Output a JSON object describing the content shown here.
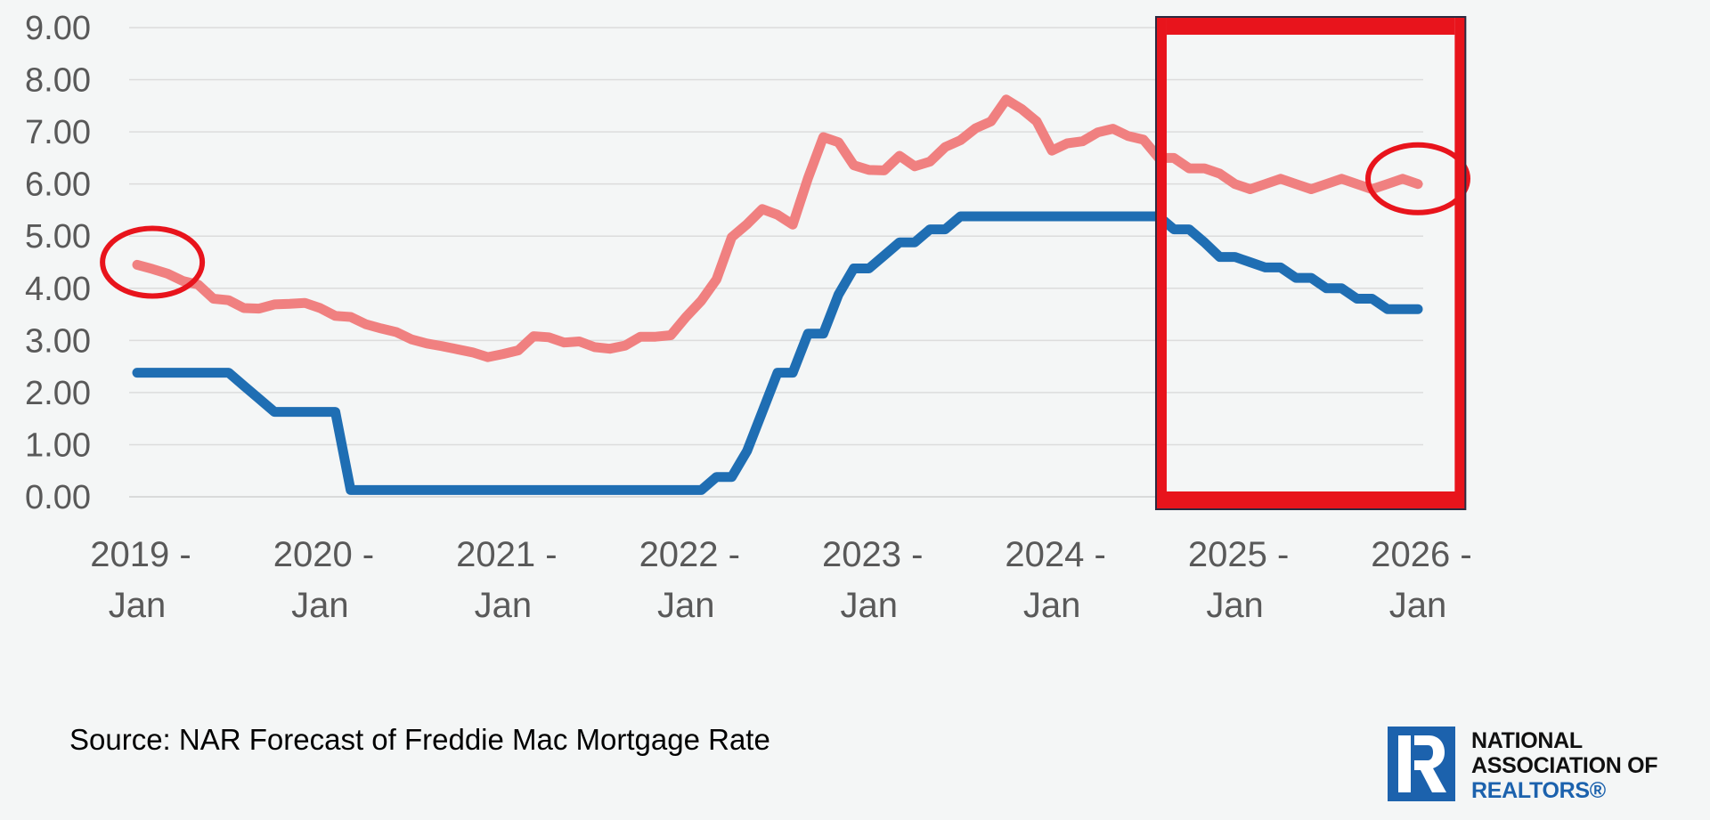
{
  "chart_data": {
    "type": "line",
    "title": "",
    "xlabel": "",
    "ylabel": "",
    "ylim": [
      0,
      9
    ],
    "y_ticks": [
      "0.00",
      "1.00",
      "2.00",
      "3.00",
      "4.00",
      "5.00",
      "6.00",
      "7.00",
      "8.00",
      "9.00"
    ],
    "x_ticks": [
      {
        "year": "2019 -",
        "month": "Jan"
      },
      {
        "year": "2020 -",
        "month": "Jan"
      },
      {
        "year": "2021 -",
        "month": "Jan"
      },
      {
        "year": "2022 -",
        "month": "Jan"
      },
      {
        "year": "2023 -",
        "month": "Jan"
      },
      {
        "year": "2024 -",
        "month": "Jan"
      },
      {
        "year": "2025 -",
        "month": "Jan"
      },
      {
        "year": "2026 -",
        "month": "Jan"
      }
    ],
    "x_start": "2019-01",
    "x_end": "2026-01",
    "grid": true,
    "series": [
      {
        "color": "#f08080",
        "points": [
          [
            "2019-01",
            4.45
          ],
          [
            "2019-02",
            4.37
          ],
          [
            "2019-03",
            4.28
          ],
          [
            "2019-04",
            4.14
          ],
          [
            "2019-05",
            4.07
          ],
          [
            "2019-06",
            3.8
          ],
          [
            "2019-07",
            3.77
          ],
          [
            "2019-08",
            3.62
          ],
          [
            "2019-09",
            3.61
          ],
          [
            "2019-10",
            3.69
          ],
          [
            "2019-11",
            3.7
          ],
          [
            "2019-12",
            3.72
          ],
          [
            "2020-01",
            3.62
          ],
          [
            "2020-02",
            3.47
          ],
          [
            "2020-03",
            3.45
          ],
          [
            "2020-04",
            3.31
          ],
          [
            "2020-05",
            3.23
          ],
          [
            "2020-06",
            3.16
          ],
          [
            "2020-07",
            3.02
          ],
          [
            "2020-08",
            2.94
          ],
          [
            "2020-09",
            2.89
          ],
          [
            "2020-10",
            2.83
          ],
          [
            "2020-11",
            2.77
          ],
          [
            "2020-12",
            2.68
          ],
          [
            "2021-01",
            2.74
          ],
          [
            "2021-02",
            2.81
          ],
          [
            "2021-03",
            3.08
          ],
          [
            "2021-04",
            3.06
          ],
          [
            "2021-05",
            2.96
          ],
          [
            "2021-06",
            2.98
          ],
          [
            "2021-07",
            2.87
          ],
          [
            "2021-08",
            2.84
          ],
          [
            "2021-09",
            2.9
          ],
          [
            "2021-10",
            3.07
          ],
          [
            "2021-11",
            3.07
          ],
          [
            "2021-12",
            3.1
          ],
          [
            "2022-01",
            3.45
          ],
          [
            "2022-02",
            3.76
          ],
          [
            "2022-03",
            4.17
          ],
          [
            "2022-04",
            4.98
          ],
          [
            "2022-05",
            5.23
          ],
          [
            "2022-06",
            5.52
          ],
          [
            "2022-07",
            5.41
          ],
          [
            "2022-08",
            5.22
          ],
          [
            "2022-09",
            6.11
          ],
          [
            "2022-10",
            6.9
          ],
          [
            "2022-11",
            6.8
          ],
          [
            "2022-12",
            6.36
          ],
          [
            "2023-01",
            6.27
          ],
          [
            "2023-02",
            6.26
          ],
          [
            "2023-03",
            6.54
          ],
          [
            "2023-04",
            6.34
          ],
          [
            "2023-05",
            6.43
          ],
          [
            "2023-06",
            6.71
          ],
          [
            "2023-07",
            6.84
          ],
          [
            "2023-08",
            7.07
          ],
          [
            "2023-09",
            7.2
          ],
          [
            "2023-10",
            7.62
          ],
          [
            "2023-11",
            7.44
          ],
          [
            "2023-12",
            7.2
          ],
          [
            "2024-01",
            6.64
          ],
          [
            "2024-02",
            6.78
          ],
          [
            "2024-03",
            6.82
          ],
          [
            "2024-04",
            6.99
          ],
          [
            "2024-05",
            7.06
          ],
          [
            "2024-06",
            6.92
          ],
          [
            "2024-07",
            6.85
          ],
          [
            "2024-08",
            6.5
          ],
          [
            "2024-09",
            6.5
          ],
          [
            "2024-10",
            6.3
          ],
          [
            "2024-11",
            6.3
          ],
          [
            "2024-12",
            6.2
          ],
          [
            "2025-01",
            6.0
          ],
          [
            "2025-02",
            5.9
          ],
          [
            "2025-03",
            6.0
          ],
          [
            "2025-04",
            6.1
          ],
          [
            "2025-05",
            6.0
          ],
          [
            "2025-06",
            5.9
          ],
          [
            "2025-07",
            6.0
          ],
          [
            "2025-08",
            6.1
          ],
          [
            "2025-09",
            6.0
          ],
          [
            "2025-10",
            5.9
          ],
          [
            "2025-11",
            6.0
          ],
          [
            "2025-12",
            6.1
          ],
          [
            "2026-01",
            6.0
          ]
        ]
      },
      {
        "color": "#1f6eb3",
        "points": [
          [
            "2019-01",
            2.38
          ],
          [
            "2019-02",
            2.38
          ],
          [
            "2019-03",
            2.38
          ],
          [
            "2019-04",
            2.38
          ],
          [
            "2019-05",
            2.38
          ],
          [
            "2019-06",
            2.38
          ],
          [
            "2019-07",
            2.38
          ],
          [
            "2019-08",
            2.13
          ],
          [
            "2019-09",
            1.88
          ],
          [
            "2019-10",
            1.63
          ],
          [
            "2019-11",
            1.63
          ],
          [
            "2019-12",
            1.63
          ],
          [
            "2020-01",
            1.63
          ],
          [
            "2020-02",
            1.63
          ],
          [
            "2020-03",
            0.13
          ],
          [
            "2020-04",
            0.13
          ],
          [
            "2020-05",
            0.13
          ],
          [
            "2020-06",
            0.13
          ],
          [
            "2020-07",
            0.13
          ],
          [
            "2020-08",
            0.13
          ],
          [
            "2020-09",
            0.13
          ],
          [
            "2020-10",
            0.13
          ],
          [
            "2020-11",
            0.13
          ],
          [
            "2020-12",
            0.13
          ],
          [
            "2021-01",
            0.13
          ],
          [
            "2021-02",
            0.13
          ],
          [
            "2021-03",
            0.13
          ],
          [
            "2021-04",
            0.13
          ],
          [
            "2021-05",
            0.13
          ],
          [
            "2021-06",
            0.13
          ],
          [
            "2021-07",
            0.13
          ],
          [
            "2021-08",
            0.13
          ],
          [
            "2021-09",
            0.13
          ],
          [
            "2021-10",
            0.13
          ],
          [
            "2021-11",
            0.13
          ],
          [
            "2021-12",
            0.13
          ],
          [
            "2022-01",
            0.13
          ],
          [
            "2022-02",
            0.13
          ],
          [
            "2022-03",
            0.38
          ],
          [
            "2022-04",
            0.38
          ],
          [
            "2022-05",
            0.88
          ],
          [
            "2022-06",
            1.63
          ],
          [
            "2022-07",
            2.38
          ],
          [
            "2022-08",
            2.38
          ],
          [
            "2022-09",
            3.13
          ],
          [
            "2022-10",
            3.13
          ],
          [
            "2022-11",
            3.88
          ],
          [
            "2022-12",
            4.38
          ],
          [
            "2023-01",
            4.38
          ],
          [
            "2023-02",
            4.63
          ],
          [
            "2023-03",
            4.88
          ],
          [
            "2023-04",
            4.88
          ],
          [
            "2023-05",
            5.13
          ],
          [
            "2023-06",
            5.13
          ],
          [
            "2023-07",
            5.38
          ],
          [
            "2023-08",
            5.38
          ],
          [
            "2023-09",
            5.38
          ],
          [
            "2023-10",
            5.38
          ],
          [
            "2023-11",
            5.38
          ],
          [
            "2023-12",
            5.38
          ],
          [
            "2024-01",
            5.38
          ],
          [
            "2024-02",
            5.38
          ],
          [
            "2024-03",
            5.38
          ],
          [
            "2024-04",
            5.38
          ],
          [
            "2024-05",
            5.38
          ],
          [
            "2024-06",
            5.38
          ],
          [
            "2024-07",
            5.38
          ],
          [
            "2024-08",
            5.38
          ],
          [
            "2024-09",
            5.13
          ],
          [
            "2024-10",
            5.13
          ],
          [
            "2024-11",
            4.88
          ],
          [
            "2024-12",
            4.6
          ],
          [
            "2025-01",
            4.6
          ],
          [
            "2025-02",
            4.5
          ],
          [
            "2025-03",
            4.4
          ],
          [
            "2025-04",
            4.4
          ],
          [
            "2025-05",
            4.2
          ],
          [
            "2025-06",
            4.2
          ],
          [
            "2025-07",
            4.0
          ],
          [
            "2025-08",
            4.0
          ],
          [
            "2025-09",
            3.8
          ],
          [
            "2025-10",
            3.8
          ],
          [
            "2025-11",
            3.6
          ],
          [
            "2025-12",
            3.6
          ],
          [
            "2026-01",
            3.6
          ]
        ]
      }
    ],
    "annotations": [
      {
        "type": "ellipse",
        "color": "#e8141c",
        "at": [
          "2019-02",
          4.5
        ]
      },
      {
        "type": "ellipse",
        "color": "#e8141c",
        "at": [
          "2026-01",
          6.1
        ]
      },
      {
        "type": "box",
        "color": "#e8141c",
        "from": "2024-08",
        "to": "2026-04",
        "y_range": [
          0,
          9
        ]
      }
    ]
  },
  "source_text": "Source: NAR Forecast of Freddie Mac Mortgage Rate",
  "logo": {
    "icon": "realtor-r-icon",
    "line1": "NATIONAL",
    "line2": "ASSOCIATION OF",
    "line3": "REALTORS®"
  }
}
